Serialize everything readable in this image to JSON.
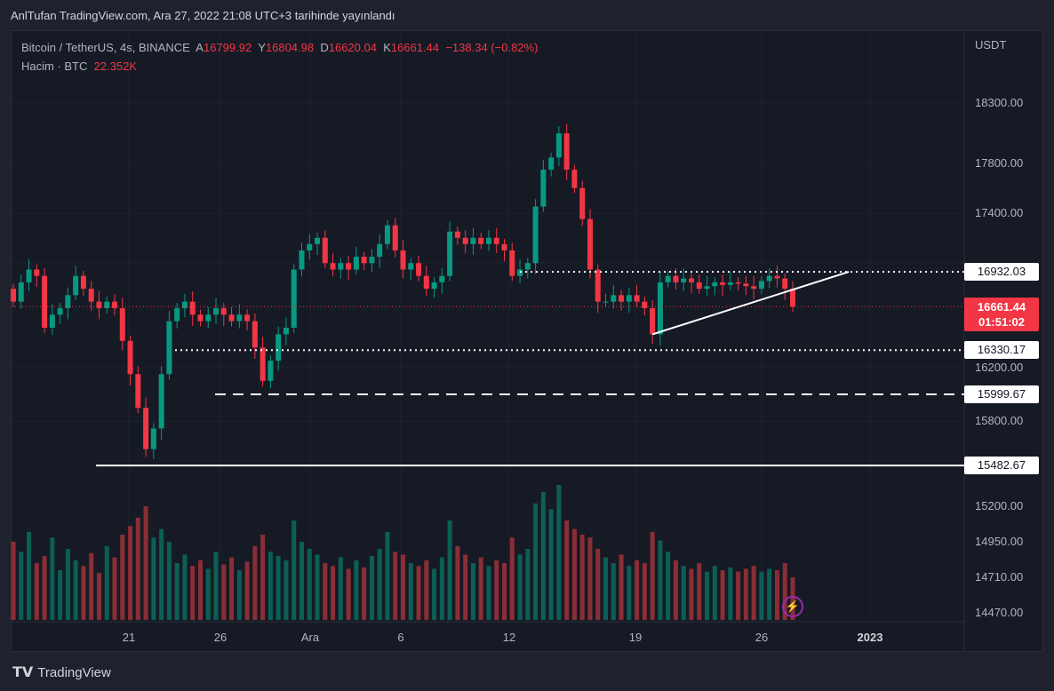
{
  "header": {
    "published": "AnlTufan TradingView.com, Ara 27, 2022 21:08 UTC+3 tarihinde yayınlandı"
  },
  "legend": {
    "symbol": "Bitcoin / TetherUS, 4s, BINANCE",
    "o_label": "A",
    "open": "16799.92",
    "h_label": "Y",
    "high": "16804.98",
    "l_label": "D",
    "low": "16620.04",
    "c_label": "K",
    "close": "16661.44",
    "change": "−138.34 (−0.82%)",
    "volume_label": "Hacim · BTC",
    "volume": "22.352K"
  },
  "axis": {
    "currency": "USDT",
    "price_ticks": [
      "18300.00",
      "17800.00",
      "17400.00",
      "16200.00",
      "15800.00"
    ],
    "volume_ticks": [
      "15200.00",
      "14950.00",
      "14710.00",
      "14470.00"
    ],
    "x_ticks": [
      "21",
      "26",
      "Ara",
      "6",
      "12",
      "19",
      "26",
      "2023"
    ]
  },
  "price_labels": {
    "resistance": "16932.03",
    "current": "16661.44",
    "countdown": "01:51:02",
    "support1": "16330.17",
    "support2": "15999.67",
    "support3": "15482.67"
  },
  "footer": {
    "brand": "TradingView"
  },
  "colors": {
    "up": "#089981",
    "down": "#f23645",
    "bg": "#161a25"
  },
  "chart_data": {
    "type": "candlestick",
    "title": "Bitcoin / TetherUS, 4s, BINANCE",
    "ylabel": "USDT",
    "yscale": "log",
    "ylim": [
      15400,
      18500
    ],
    "x_ticks": [
      "21",
      "26",
      "Ara",
      "6",
      "12",
      "19",
      "26",
      "2023"
    ],
    "closes": [
      16700,
      16850,
      16950,
      16900,
      16500,
      16600,
      16650,
      16750,
      16900,
      16800,
      16700,
      16650,
      16700,
      16650,
      16400,
      16150,
      15900,
      15600,
      15750,
      16150,
      16550,
      16650,
      16700,
      16600,
      16550,
      16600,
      16650,
      16600,
      16550,
      16600,
      16550,
      16350,
      16100,
      16250,
      16450,
      16500,
      16950,
      17100,
      17150,
      17200,
      17000,
      16950,
      17000,
      16950,
      17050,
      17000,
      17050,
      17150,
      17300,
      17100,
      16950,
      17000,
      16900,
      16800,
      16850,
      16900,
      17250,
      17200,
      17150,
      17200,
      17150,
      17200,
      17150,
      17100,
      16900,
      16950,
      17000,
      17450,
      17750,
      17850,
      18050,
      17750,
      17600,
      17350,
      16950,
      16700,
      16700,
      16750,
      16700,
      16750,
      16700,
      16650,
      16450,
      16850,
      16900,
      16850,
      16880,
      16850,
      16800,
      16820,
      16850,
      16830,
      16850,
      16840,
      16820,
      16800,
      16860,
      16900,
      16880,
      16800,
      16661.44
    ],
    "volumes": [
      55,
      48,
      62,
      40,
      45,
      58,
      35,
      50,
      42,
      38,
      47,
      33,
      52,
      44,
      60,
      66,
      72,
      80,
      58,
      64,
      55,
      40,
      46,
      38,
      42,
      36,
      48,
      39,
      44,
      35,
      41,
      52,
      60,
      48,
      45,
      42,
      70,
      55,
      50,
      46,
      40,
      38,
      44,
      36,
      42,
      37,
      45,
      50,
      62,
      48,
      46,
      40,
      38,
      42,
      36,
      44,
      70,
      52,
      46,
      40,
      44,
      38,
      42,
      40,
      58,
      46,
      50,
      82,
      90,
      78,
      95,
      70,
      64,
      60,
      58,
      50,
      44,
      40,
      46,
      38,
      42,
      40,
      62,
      56,
      48,
      42,
      38,
      36,
      40,
      34,
      38,
      35,
      37,
      34,
      36,
      38,
      34,
      36,
      35,
      40,
      30
    ],
    "levels": [
      {
        "label": "16932.03",
        "value": 16932.03,
        "style": "dotted"
      },
      {
        "label": "16330.17",
        "value": 16330.17,
        "style": "dotted"
      },
      {
        "label": "15999.67",
        "value": 15999.67,
        "style": "dashed"
      },
      {
        "label": "15482.67",
        "value": 15482.67,
        "style": "solid"
      }
    ],
    "trendline": {
      "from": {
        "index": 82,
        "price": 16450
      },
      "to": {
        "index": 104,
        "price": 16932
      }
    }
  }
}
